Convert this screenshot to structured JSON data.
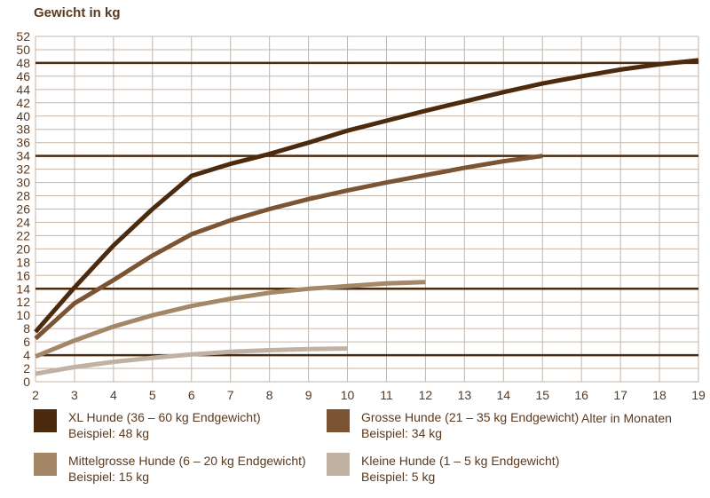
{
  "chart_data": {
    "type": "line",
    "y_axis": {
      "title": "Gewicht in kg",
      "min": 0,
      "max": 52,
      "tick_step": 2
    },
    "x_axis": {
      "title": "Alter in Monaten",
      "min": 2,
      "max": 19,
      "tick_step": 1
    },
    "grid": true,
    "grid_color": "#c6b5a6",
    "reference_line_color": "#4c2a0e",
    "reference_lines": [
      48,
      34,
      14,
      4
    ],
    "series": [
      {
        "name": "XL Hunde (36 – 60 kg Endgewicht)",
        "example": "Beispiel: 48 kg",
        "example_value": 48,
        "color": "#4c2a0e",
        "x": [
          2,
          3,
          4,
          5,
          6,
          7,
          8,
          9,
          10,
          11,
          12,
          13,
          14,
          15,
          16,
          17,
          18,
          19
        ],
        "values": [
          7.5,
          14.2,
          20.5,
          26,
          31,
          32.8,
          34.3,
          36,
          37.8,
          39.3,
          40.8,
          42.2,
          43.6,
          44.9,
          46,
          47,
          47.8,
          48.4
        ]
      },
      {
        "name": "Grosse Hunde (21 – 35 kg Endgewicht)",
        "example": "Beispiel: 34 kg",
        "example_value": 34,
        "color": "#7a5433",
        "x": [
          2,
          3,
          4,
          5,
          6,
          7,
          8,
          9,
          10,
          11,
          12,
          13,
          14,
          15
        ],
        "values": [
          6.5,
          11.8,
          15.3,
          19,
          22.2,
          24.3,
          26,
          27.5,
          28.8,
          30,
          31.1,
          32.2,
          33.2,
          34
        ]
      },
      {
        "name": "Mittelgrosse Hunde (6 – 20 kg Endgewicht)",
        "example": "Beispiel: 15 kg",
        "example_value": 15,
        "color": "#a38767",
        "x": [
          2,
          3,
          4,
          5,
          6,
          7,
          8,
          9,
          10,
          11,
          12
        ],
        "values": [
          3.8,
          6.2,
          8.3,
          10,
          11.4,
          12.5,
          13.4,
          14,
          14.4,
          14.8,
          15
        ]
      },
      {
        "name": "Kleine Hunde (1 – 5 kg Endgewicht)",
        "example": "Beispiel: 5 kg",
        "example_value": 5,
        "color": "#c0b1a3",
        "x": [
          2,
          3,
          4,
          5,
          6,
          7,
          8,
          9,
          10
        ],
        "values": [
          1.2,
          2.2,
          3,
          3.6,
          4.1,
          4.5,
          4.75,
          4.9,
          5
        ]
      }
    ]
  }
}
